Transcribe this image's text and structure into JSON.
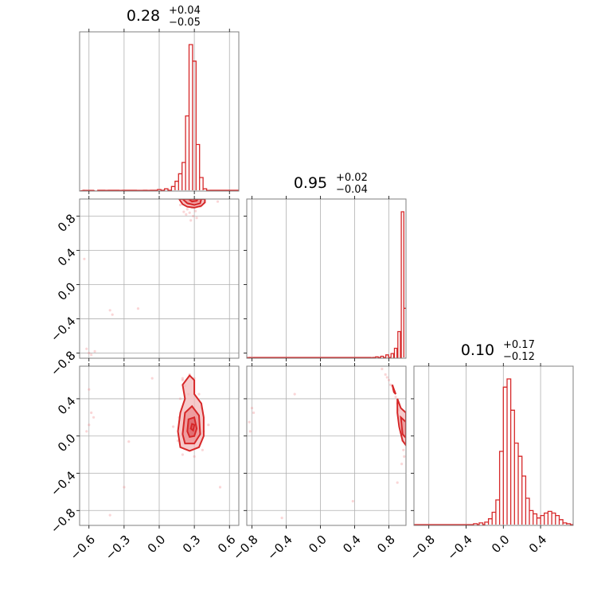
{
  "chart_data": [
    {
      "type": "histogram",
      "panel": "diag-0",
      "parameter_index": 0,
      "title_main": "0.28",
      "title_plus": "+0.04",
      "title_minus": "−0.05",
      "xlim": [
        -0.68,
        0.68
      ],
      "bins": [
        {
          "x": -0.63,
          "y": 1
        },
        {
          "x": -0.6,
          "y": 1
        },
        {
          "x": -0.57,
          "y": 1
        },
        {
          "x": -0.54,
          "y": 0
        },
        {
          "x": -0.45,
          "y": 1
        },
        {
          "x": -0.33,
          "y": 1
        },
        {
          "x": -0.18,
          "y": 1
        },
        {
          "x": -0.15,
          "y": 1
        },
        {
          "x": -0.09,
          "y": 1
        },
        {
          "x": 0.0,
          "y": 2
        },
        {
          "x": 0.06,
          "y": 3
        },
        {
          "x": 0.12,
          "y": 6
        },
        {
          "x": 0.15,
          "y": 13
        },
        {
          "x": 0.18,
          "y": 23
        },
        {
          "x": 0.21,
          "y": 38
        },
        {
          "x": 0.24,
          "y": 100
        },
        {
          "x": 0.27,
          "y": 195
        },
        {
          "x": 0.3,
          "y": 173
        },
        {
          "x": 0.33,
          "y": 62
        },
        {
          "x": 0.36,
          "y": 18
        },
        {
          "x": 0.39,
          "y": 3
        },
        {
          "x": 0.42,
          "y": 1
        }
      ]
    },
    {
      "type": "histogram",
      "panel": "diag-1",
      "parameter_index": 1,
      "title_main": "0.95",
      "title_plus": "+0.02",
      "title_minus": "−0.04",
      "xlim": [
        -0.86,
        1.0
      ],
      "bins": [
        {
          "x": -0.84,
          "y": 1
        },
        {
          "x": -0.8,
          "y": 1
        },
        {
          "x": 0.6,
          "y": 1
        },
        {
          "x": 0.66,
          "y": 2
        },
        {
          "x": 0.72,
          "y": 3
        },
        {
          "x": 0.78,
          "y": 5
        },
        {
          "x": 0.84,
          "y": 7
        },
        {
          "x": 0.88,
          "y": 15
        },
        {
          "x": 0.92,
          "y": 40
        },
        {
          "x": 0.96,
          "y": 220
        },
        {
          "x": 0.99,
          "y": 75
        }
      ]
    },
    {
      "type": "histogram",
      "panel": "diag-2",
      "parameter_index": 2,
      "title_main": "0.10",
      "title_plus": "+0.17",
      "title_minus": "−0.12",
      "xlim": [
        -0.96,
        0.75
      ],
      "bins": [
        {
          "x": -0.94,
          "y": 1
        },
        {
          "x": -0.85,
          "y": 1
        },
        {
          "x": -0.58,
          "y": 1
        },
        {
          "x": -0.38,
          "y": 1
        },
        {
          "x": -0.3,
          "y": 2
        },
        {
          "x": -0.24,
          "y": 3
        },
        {
          "x": -0.18,
          "y": 4
        },
        {
          "x": -0.14,
          "y": 8
        },
        {
          "x": -0.1,
          "y": 16
        },
        {
          "x": -0.06,
          "y": 31
        },
        {
          "x": -0.02,
          "y": 90
        },
        {
          "x": 0.02,
          "y": 168
        },
        {
          "x": 0.06,
          "y": 178
        },
        {
          "x": 0.1,
          "y": 140
        },
        {
          "x": 0.14,
          "y": 100
        },
        {
          "x": 0.18,
          "y": 84
        },
        {
          "x": 0.22,
          "y": 60
        },
        {
          "x": 0.26,
          "y": 33
        },
        {
          "x": 0.3,
          "y": 18
        },
        {
          "x": 0.34,
          "y": 14
        },
        {
          "x": 0.38,
          "y": 9
        },
        {
          "x": 0.42,
          "y": 12
        },
        {
          "x": 0.46,
          "y": 15
        },
        {
          "x": 0.5,
          "y": 17
        },
        {
          "x": 0.54,
          "y": 15
        },
        {
          "x": 0.58,
          "y": 12
        },
        {
          "x": 0.62,
          "y": 7
        },
        {
          "x": 0.66,
          "y": 3
        },
        {
          "x": 0.7,
          "y": 2
        }
      ]
    },
    {
      "type": "scatter",
      "panel": "corner-1-0",
      "x_parameter": 0,
      "y_parameter": 1,
      "xlim": [
        -0.68,
        0.68
      ],
      "ylim": [
        -0.86,
        1.0
      ],
      "points": [
        [
          0.2,
          0.97
        ],
        [
          0.22,
          0.95
        ],
        [
          0.25,
          0.93
        ],
        [
          0.27,
          0.97
        ],
        [
          0.3,
          0.94
        ],
        [
          0.33,
          0.96
        ],
        [
          0.28,
          0.9
        ],
        [
          0.24,
          0.88
        ],
        [
          0.31,
          0.86
        ],
        [
          0.26,
          0.84
        ],
        [
          0.29,
          0.8
        ],
        [
          0.23,
          0.82
        ],
        [
          0.35,
          0.91
        ],
        [
          0.18,
          0.93
        ],
        [
          0.32,
          0.78
        ],
        [
          0.27,
          0.75
        ],
        [
          0.21,
          0.85
        ],
        [
          0.38,
          0.97
        ],
        [
          -0.62,
          -0.75
        ],
        [
          -0.6,
          -0.8
        ],
        [
          -0.58,
          -0.82
        ],
        [
          -0.55,
          -0.78
        ],
        [
          -0.4,
          -0.35
        ],
        [
          -0.42,
          -0.3
        ],
        [
          -0.18,
          -0.28
        ],
        [
          -0.64,
          0.3
        ],
        [
          0.5,
          0.97
        ]
      ],
      "contours": [
        [
          [
            0.17,
            1.0
          ],
          [
            0.2,
            0.94
          ],
          [
            0.24,
            0.91
          ],
          [
            0.3,
            0.9
          ],
          [
            0.36,
            0.92
          ],
          [
            0.39,
            0.96
          ],
          [
            0.39,
            1.0
          ]
        ],
        [
          [
            0.2,
            1.0
          ],
          [
            0.24,
            0.95
          ],
          [
            0.3,
            0.93
          ],
          [
            0.35,
            0.95
          ],
          [
            0.36,
            1.0
          ]
        ],
        [
          [
            0.25,
            1.0
          ],
          [
            0.28,
            0.97
          ],
          [
            0.32,
            0.98
          ],
          [
            0.33,
            1.0
          ]
        ]
      ]
    },
    {
      "type": "scatter",
      "panel": "corner-2-0",
      "x_parameter": 0,
      "y_parameter": 2,
      "xlim": [
        -0.68,
        0.68
      ],
      "ylim": [
        -0.96,
        0.75
      ],
      "points": [
        [
          0.2,
          0.6
        ],
        [
          0.26,
          0.66
        ],
        [
          0.3,
          0.62
        ],
        [
          0.22,
          0.54
        ],
        [
          0.34,
          0.45
        ],
        [
          0.18,
          0.4
        ],
        [
          0.36,
          0.3
        ],
        [
          0.17,
          0.2
        ],
        [
          0.38,
          0.05
        ],
        [
          0.16,
          -0.05
        ],
        [
          0.37,
          -0.15
        ],
        [
          0.2,
          -0.2
        ],
        [
          0.3,
          -0.22
        ],
        [
          0.12,
          0.1
        ],
        [
          0.42,
          0.12
        ],
        [
          -0.6,
          0.5
        ],
        [
          -0.58,
          0.25
        ],
        [
          -0.56,
          0.2
        ],
        [
          -0.62,
          0.05
        ],
        [
          -0.6,
          0.12
        ],
        [
          -0.26,
          -0.06
        ],
        [
          -0.06,
          0.62
        ],
        [
          0.52,
          -0.55
        ],
        [
          -0.3,
          -0.55
        ],
        [
          -0.42,
          -0.85
        ],
        [
          0.2,
          0.62
        ],
        [
          0.25,
          0.45
        ]
      ],
      "contours": [
        [
          [
            0.2,
            0.55
          ],
          [
            0.26,
            0.65
          ],
          [
            0.3,
            0.6
          ],
          [
            0.3,
            0.45
          ],
          [
            0.36,
            0.35
          ],
          [
            0.38,
            0.2
          ],
          [
            0.38,
            0.0
          ],
          [
            0.34,
            -0.12
          ],
          [
            0.26,
            -0.16
          ],
          [
            0.18,
            -0.12
          ],
          [
            0.16,
            0.05
          ],
          [
            0.18,
            0.25
          ],
          [
            0.22,
            0.4
          ],
          [
            0.2,
            0.55
          ]
        ],
        [
          [
            0.2,
            0.02
          ],
          [
            0.22,
            0.25
          ],
          [
            0.28,
            0.32
          ],
          [
            0.34,
            0.22
          ],
          [
            0.35,
            0.02
          ],
          [
            0.3,
            -0.08
          ],
          [
            0.22,
            -0.08
          ],
          [
            0.2,
            0.02
          ]
        ],
        [
          [
            0.24,
            0.05
          ],
          [
            0.25,
            0.18
          ],
          [
            0.3,
            0.2
          ],
          [
            0.32,
            0.08
          ],
          [
            0.3,
            0.0
          ],
          [
            0.26,
            -0.01
          ],
          [
            0.24,
            0.05
          ]
        ],
        [
          [
            0.27,
            0.08
          ],
          [
            0.28,
            0.13
          ],
          [
            0.3,
            0.12
          ],
          [
            0.29,
            0.06
          ],
          [
            0.27,
            0.08
          ]
        ]
      ]
    },
    {
      "type": "scatter",
      "panel": "corner-2-1",
      "x_parameter": 1,
      "y_parameter": 2,
      "xlim": [
        -0.86,
        1.0
      ],
      "ylim": [
        -0.96,
        0.75
      ],
      "points": [
        [
          0.72,
          0.72
        ],
        [
          0.76,
          0.66
        ],
        [
          0.8,
          0.6
        ],
        [
          0.84,
          0.54
        ],
        [
          0.86,
          0.48
        ],
        [
          0.88,
          0.42
        ],
        [
          0.9,
          0.35
        ],
        [
          0.92,
          0.28
        ],
        [
          0.94,
          0.2
        ],
        [
          0.95,
          0.12
        ],
        [
          0.96,
          0.05
        ],
        [
          0.96,
          -0.05
        ],
        [
          0.97,
          -0.15
        ],
        [
          0.98,
          -0.22
        ],
        [
          0.78,
          0.63
        ],
        [
          0.82,
          0.55
        ],
        [
          0.85,
          0.5
        ],
        [
          -0.8,
          0.3
        ],
        [
          -0.83,
          0.15
        ],
        [
          -0.78,
          0.25
        ],
        [
          -0.82,
          0.05
        ],
        [
          -0.3,
          0.45
        ],
        [
          -0.45,
          -0.88
        ],
        [
          0.38,
          -0.7
        ],
        [
          0.9,
          -0.5
        ],
        [
          0.95,
          -0.3
        ]
      ],
      "contours": [
        [
          [
            0.9,
            0.4
          ],
          [
            0.94,
            0.3
          ],
          [
            1.0,
            0.25
          ],
          [
            1.0,
            -0.1
          ],
          [
            0.96,
            -0.05
          ],
          [
            0.92,
            0.1
          ],
          [
            0.9,
            0.25
          ],
          [
            0.9,
            0.4
          ]
        ],
        [
          [
            0.94,
            0.2
          ],
          [
            1.0,
            0.15
          ],
          [
            1.0,
            -0.02
          ],
          [
            0.96,
            0.02
          ],
          [
            0.94,
            0.2
          ]
        ],
        [
          [
            0.84,
            0.55
          ],
          [
            0.86,
            0.5
          ],
          [
            0.88,
            0.45
          ],
          [
            0.86,
            0.47
          ],
          [
            0.84,
            0.55
          ]
        ]
      ]
    }
  ],
  "axes": {
    "x_ticks_param0": [
      "−0.6",
      "−0.3",
      "0.0",
      "0.3",
      "0.6"
    ],
    "x_ticks_param1": [
      "−0.8",
      "−0.4",
      "0.0",
      "0.4",
      "0.8"
    ],
    "x_ticks_param2": [
      "−0.8",
      "−0.4",
      "0.0",
      "0.4"
    ],
    "y_ticks_param1": [
      "0.8",
      "0.4",
      "0.0",
      "−0.4",
      "−0.8"
    ],
    "y_ticks_param2": [
      "0.4",
      "0.0",
      "−0.4",
      "−0.8"
    ]
  },
  "colors": {
    "series": "#d62728",
    "frame": "#7f7f7f",
    "grid": "#b0b0b0"
  }
}
